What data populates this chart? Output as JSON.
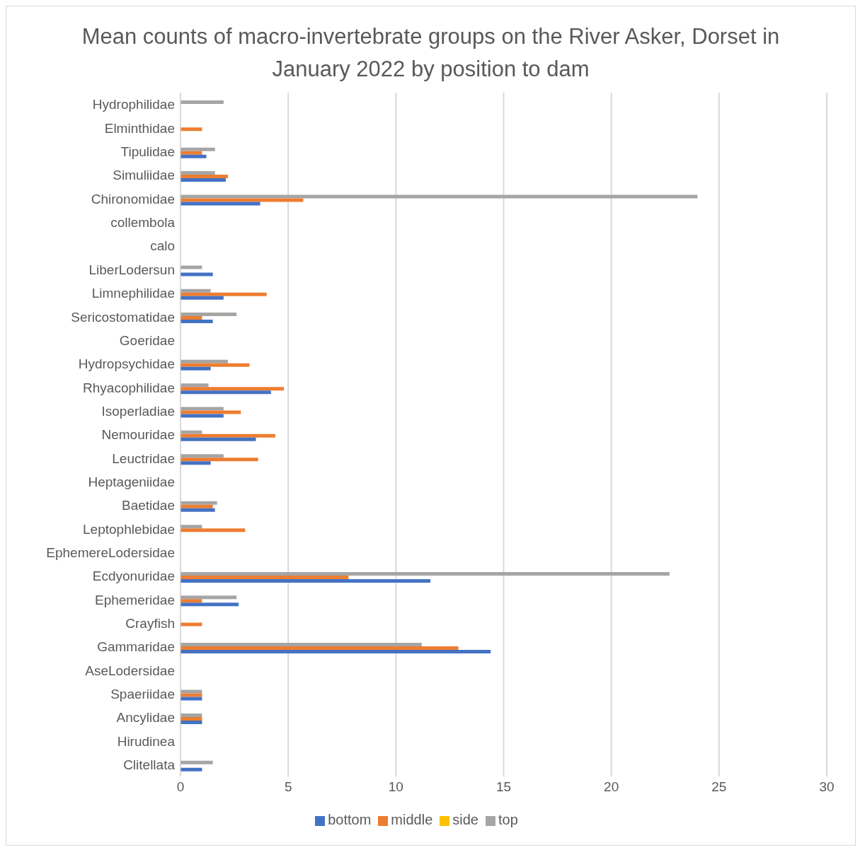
{
  "chart_data": {
    "type": "bar",
    "orientation": "horizontal",
    "title": "Mean counts of macro-invertebrate groups on the River Asker, Dorset in January 2022 by position to dam",
    "categories": [
      "Hydrophilidae",
      "Elminthidae",
      "Tipulidae",
      "Simuliidae",
      "Chironomidae",
      "collembola",
      "calo",
      "LiberLodersun",
      "Limnephilidae",
      "Sericostomatidae",
      "Goeridae",
      "Hydropsychidae",
      "Rhyacophilidae",
      "Isoperladiae",
      "Nemouridae",
      "Leuctridae",
      "Heptageniidae",
      "Baetidae",
      "Leptophlebidae",
      "EphemereLodersidae",
      "Ecdyonuridae",
      "Ephemeridae",
      "Crayfish",
      "Gammaridae",
      "AseLodersidae",
      "Spaeriidae",
      "Ancylidae",
      "Hirudinea",
      "Clitellata"
    ],
    "series": [
      {
        "name": "side",
        "color": "#ffc000",
        "values": [
          null,
          null,
          null,
          null,
          null,
          null,
          null,
          null,
          null,
          null,
          null,
          null,
          null,
          null,
          null,
          null,
          null,
          null,
          null,
          null,
          null,
          null,
          null,
          null,
          null,
          null,
          null,
          null,
          null
        ]
      },
      {
        "name": "top",
        "color": "#a5a5a5",
        "values": [
          2,
          null,
          1.6,
          1.6,
          24,
          null,
          null,
          1,
          1.4,
          2.6,
          null,
          2.2,
          1.3,
          2,
          1,
          2,
          null,
          1.7,
          1,
          null,
          22.7,
          2.6,
          null,
          11.2,
          null,
          1,
          1,
          null,
          1.5
        ]
      },
      {
        "name": "middle",
        "color": "#ed7d31",
        "values": [
          null,
          1,
          1,
          2.2,
          5.7,
          null,
          null,
          null,
          4,
          1,
          null,
          3.2,
          4.8,
          2.8,
          4.4,
          3.6,
          null,
          1.5,
          3,
          null,
          7.8,
          1,
          1,
          12.9,
          null,
          1,
          1,
          null,
          null
        ]
      },
      {
        "name": "bottom",
        "color": "#4472c4",
        "values": [
          null,
          null,
          1.2,
          2.1,
          3.7,
          null,
          null,
          1.5,
          2,
          1.5,
          null,
          1.4,
          4.2,
          2,
          3.5,
          1.4,
          null,
          1.6,
          null,
          null,
          11.6,
          2.7,
          null,
          14.4,
          null,
          1,
          1,
          null,
          1
        ]
      }
    ],
    "xlim": [
      0,
      30
    ],
    "xticks": [
      0,
      5,
      10,
      15,
      20,
      25,
      30
    ],
    "grid": "x",
    "legend": "bottom"
  }
}
